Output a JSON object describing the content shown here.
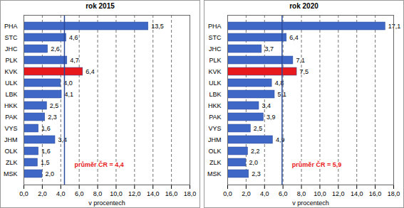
{
  "chart_data": [
    {
      "type": "bar",
      "title": "rok 2015",
      "orientation": "horizontal",
      "grid": true,
      "data_labels": true,
      "categories": [
        "PHA",
        "STC",
        "JHC",
        "PLK",
        "KVK",
        "ULK",
        "LBK",
        "HKK",
        "PAK",
        "VYS",
        "JHM",
        "OLK",
        "ZLK",
        "MSK"
      ],
      "values": [
        13.5,
        4.6,
        2.6,
        4.7,
        6.4,
        4.0,
        4.1,
        2.5,
        2.3,
        1.6,
        3.4,
        1.6,
        1.5,
        2.0
      ],
      "value_labels": [
        "13,5",
        "4,6",
        "2,6",
        "4,7",
        "6,4",
        "4,0",
        "4,1",
        "2,5",
        "2,3",
        "1,6",
        "3,4",
        "1,6",
        "1,5",
        "2,0"
      ],
      "colors": [
        "#3f67c6",
        "#3f67c6",
        "#3f67c6",
        "#3f67c6",
        "#e8191c",
        "#3f67c6",
        "#3f67c6",
        "#3f67c6",
        "#3f67c6",
        "#3f67c6",
        "#3f67c6",
        "#3f67c6",
        "#3f67c6",
        "#3f67c6"
      ],
      "xlabel": "v procentech",
      "xlim": [
        0,
        18
      ],
      "xticks": [
        {
          "value": 0,
          "label": "0,0"
        },
        {
          "value": 2,
          "label": "2,0"
        },
        {
          "value": 4,
          "label": "4,0"
        },
        {
          "value": 6,
          "label": "6,0"
        },
        {
          "value": 8,
          "label": "8,0"
        },
        {
          "value": 10,
          "label": "10,0"
        },
        {
          "value": 12,
          "label": "12,0"
        },
        {
          "value": 14,
          "label": "14,0"
        },
        {
          "value": 16,
          "label": "16,0"
        },
        {
          "value": 18,
          "label": "18,0"
        }
      ],
      "annotations": [
        {
          "label": "průměr ČR = 4,4",
          "value": 4.4
        }
      ]
    },
    {
      "type": "bar",
      "title": "rok 2020",
      "orientation": "horizontal",
      "grid": true,
      "data_labels": true,
      "categories": [
        "PHA",
        "STC",
        "JHC",
        "PLK",
        "KVK",
        "ULK",
        "LBK",
        "HKK",
        "PAK",
        "VYS",
        "JHM",
        "OLK",
        "ZLK",
        "MSK"
      ],
      "values": [
        17.1,
        6.4,
        3.7,
        7.1,
        7.5,
        4.8,
        5.1,
        3.4,
        3.9,
        2.5,
        4.9,
        2.2,
        2.0,
        2.3
      ],
      "value_labels": [
        "17,1",
        "6,4",
        "3,7",
        "7,1",
        "7,5",
        "4,8",
        "5,1",
        "3,4",
        "3,9",
        "2,5",
        "4,9",
        "2,2",
        "2,0",
        "2,3"
      ],
      "colors": [
        "#3f67c6",
        "#3f67c6",
        "#3f67c6",
        "#3f67c6",
        "#e8191c",
        "#3f67c6",
        "#3f67c6",
        "#3f67c6",
        "#3f67c6",
        "#3f67c6",
        "#3f67c6",
        "#3f67c6",
        "#3f67c6",
        "#3f67c6"
      ],
      "xlabel": "v procentech",
      "xlim": [
        0,
        18
      ],
      "xticks": [
        {
          "value": 0,
          "label": "0,0"
        },
        {
          "value": 2,
          "label": "2,0"
        },
        {
          "value": 4,
          "label": "4,0"
        },
        {
          "value": 6,
          "label": "6,0"
        },
        {
          "value": 8,
          "label": "8,0"
        },
        {
          "value": 10,
          "label": "10,0"
        },
        {
          "value": 12,
          "label": "12,0"
        },
        {
          "value": 14,
          "label": "14,0"
        },
        {
          "value": 16,
          "label": "16,0"
        },
        {
          "value": 18,
          "label": "18,0"
        }
      ],
      "annotations": [
        {
          "label": "průměr ČR = 5,9",
          "value": 5.9
        }
      ]
    }
  ]
}
